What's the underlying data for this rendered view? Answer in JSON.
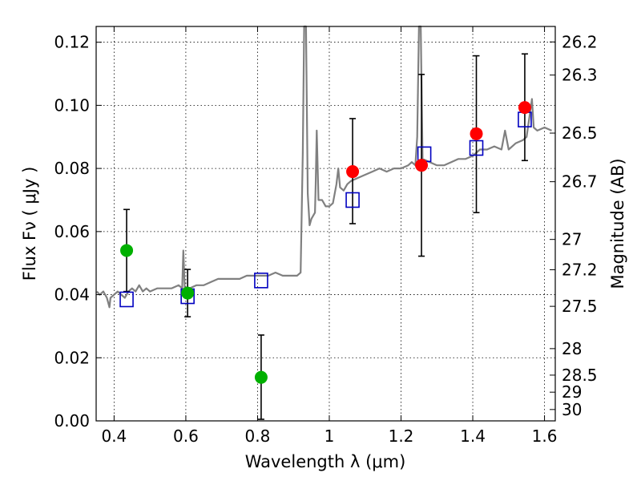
{
  "chart_data": {
    "type": "scatter",
    "xlabel": "Wavelength  λ (μm)",
    "ylabel": "Flux  Fν  ( μJy )",
    "ylabel_right": "Magnitude (AB)",
    "xlim": [
      0.35,
      1.63
    ],
    "ylim": [
      0.0,
      0.125
    ],
    "grid": true,
    "x_ticks": [
      0.4,
      0.6,
      0.8,
      1.0,
      1.2,
      1.4,
      1.6
    ],
    "x_tick_labels": [
      "0.4",
      "0.6",
      "0.8",
      "1",
      "1.2",
      "1.4",
      "1.6"
    ],
    "y_ticks": [
      0.0,
      0.02,
      0.04,
      0.06,
      0.08,
      0.1,
      0.12
    ],
    "y_tick_labels": [
      "0.00",
      "0.02",
      "0.04",
      "0.06",
      "0.08",
      "0.10",
      "0.12"
    ],
    "right_ticks": [
      {
        "label": "26.2",
        "flux": 0.1201
      },
      {
        "label": "26.3",
        "flux": 0.1096
      },
      {
        "label": "26.5",
        "flux": 0.0912
      },
      {
        "label": "26.7",
        "flux": 0.0758
      },
      {
        "label": "27",
        "flux": 0.0575
      },
      {
        "label": "27.2",
        "flux": 0.0479
      },
      {
        "label": "27.5",
        "flux": 0.0363
      },
      {
        "label": "28",
        "flux": 0.0229
      },
      {
        "label": "28.5",
        "flux": 0.0145
      },
      {
        "label": "29",
        "flux": 0.0091
      },
      {
        "label": "30",
        "flux": 0.0036
      }
    ],
    "series": [
      {
        "name": "model-spectrum",
        "kind": "line",
        "color": "#808080",
        "points": [
          [
            0.352,
            0.041
          ],
          [
            0.36,
            0.04
          ],
          [
            0.37,
            0.041
          ],
          [
            0.38,
            0.039
          ],
          [
            0.387,
            0.036
          ],
          [
            0.39,
            0.039
          ],
          [
            0.4,
            0.04
          ],
          [
            0.41,
            0.041
          ],
          [
            0.42,
            0.04
          ],
          [
            0.43,
            0.039
          ],
          [
            0.44,
            0.041
          ],
          [
            0.45,
            0.042
          ],
          [
            0.46,
            0.041
          ],
          [
            0.47,
            0.043
          ],
          [
            0.48,
            0.041
          ],
          [
            0.49,
            0.042
          ],
          [
            0.5,
            0.041
          ],
          [
            0.52,
            0.042
          ],
          [
            0.54,
            0.042
          ],
          [
            0.56,
            0.042
          ],
          [
            0.58,
            0.043
          ],
          [
            0.59,
            0.042
          ],
          [
            0.593,
            0.054
          ],
          [
            0.597,
            0.042
          ],
          [
            0.61,
            0.042
          ],
          [
            0.63,
            0.043
          ],
          [
            0.65,
            0.043
          ],
          [
            0.67,
            0.044
          ],
          [
            0.69,
            0.045
          ],
          [
            0.71,
            0.045
          ],
          [
            0.73,
            0.045
          ],
          [
            0.75,
            0.045
          ],
          [
            0.77,
            0.046
          ],
          [
            0.79,
            0.046
          ],
          [
            0.81,
            0.046
          ],
          [
            0.83,
            0.046
          ],
          [
            0.85,
            0.047
          ],
          [
            0.87,
            0.046
          ],
          [
            0.89,
            0.046
          ],
          [
            0.91,
            0.046
          ],
          [
            0.92,
            0.047
          ],
          [
            0.926,
            0.085
          ],
          [
            0.93,
            0.125
          ],
          [
            0.935,
            0.125
          ],
          [
            0.94,
            0.072
          ],
          [
            0.945,
            0.062
          ],
          [
            0.95,
            0.064
          ],
          [
            0.96,
            0.066
          ],
          [
            0.962,
            0.075
          ],
          [
            0.965,
            0.092
          ],
          [
            0.97,
            0.07
          ],
          [
            0.98,
            0.07
          ],
          [
            0.99,
            0.068
          ],
          [
            1.0,
            0.068
          ],
          [
            1.01,
            0.069
          ],
          [
            1.02,
            0.075
          ],
          [
            1.025,
            0.08
          ],
          [
            1.03,
            0.074
          ],
          [
            1.04,
            0.073
          ],
          [
            1.05,
            0.075
          ],
          [
            1.06,
            0.076
          ],
          [
            1.08,
            0.077
          ],
          [
            1.1,
            0.078
          ],
          [
            1.12,
            0.079
          ],
          [
            1.14,
            0.08
          ],
          [
            1.16,
            0.079
          ],
          [
            1.18,
            0.08
          ],
          [
            1.2,
            0.08
          ],
          [
            1.22,
            0.081
          ],
          [
            1.23,
            0.082
          ],
          [
            1.24,
            0.081
          ],
          [
            1.245,
            0.09
          ],
          [
            1.25,
            0.125
          ],
          [
            1.255,
            0.125
          ],
          [
            1.26,
            0.083
          ],
          [
            1.28,
            0.082
          ],
          [
            1.3,
            0.081
          ],
          [
            1.32,
            0.081
          ],
          [
            1.34,
            0.082
          ],
          [
            1.36,
            0.083
          ],
          [
            1.38,
            0.083
          ],
          [
            1.4,
            0.084
          ],
          [
            1.42,
            0.086
          ],
          [
            1.44,
            0.086
          ],
          [
            1.46,
            0.087
          ],
          [
            1.48,
            0.086
          ],
          [
            1.49,
            0.092
          ],
          [
            1.5,
            0.086
          ],
          [
            1.52,
            0.088
          ],
          [
            1.54,
            0.089
          ],
          [
            1.55,
            0.09
          ],
          [
            1.56,
            0.098
          ],
          [
            1.565,
            0.102
          ],
          [
            1.57,
            0.093
          ],
          [
            1.58,
            0.092
          ],
          [
            1.6,
            0.093
          ],
          [
            1.62,
            0.092
          ]
        ]
      },
      {
        "name": "model-photometry",
        "kind": "open-square",
        "color": "#0000c0",
        "points": [
          [
            0.435,
            0.0385
          ],
          [
            0.605,
            0.0395
          ],
          [
            0.81,
            0.0445
          ],
          [
            1.065,
            0.07
          ],
          [
            1.265,
            0.0845
          ],
          [
            1.41,
            0.0865
          ],
          [
            1.545,
            0.0955
          ]
        ]
      },
      {
        "name": "observed-green",
        "kind": "filled-circle",
        "color": "#00b000",
        "points": [
          [
            0.435,
            0.054,
            0.041,
            0.067
          ],
          [
            0.605,
            0.0405,
            0.033,
            0.048
          ],
          [
            0.81,
            0.0138,
            0.0005,
            0.0272
          ]
        ]
      },
      {
        "name": "observed-red",
        "kind": "filled-circle",
        "color": "#ff0000",
        "points": [
          [
            1.065,
            0.079,
            0.0625,
            0.0958
          ],
          [
            1.257,
            0.081,
            0.0522,
            0.1098
          ],
          [
            1.41,
            0.091,
            0.066,
            0.1157
          ],
          [
            1.545,
            0.0993,
            0.0825,
            0.1163
          ]
        ]
      }
    ]
  }
}
